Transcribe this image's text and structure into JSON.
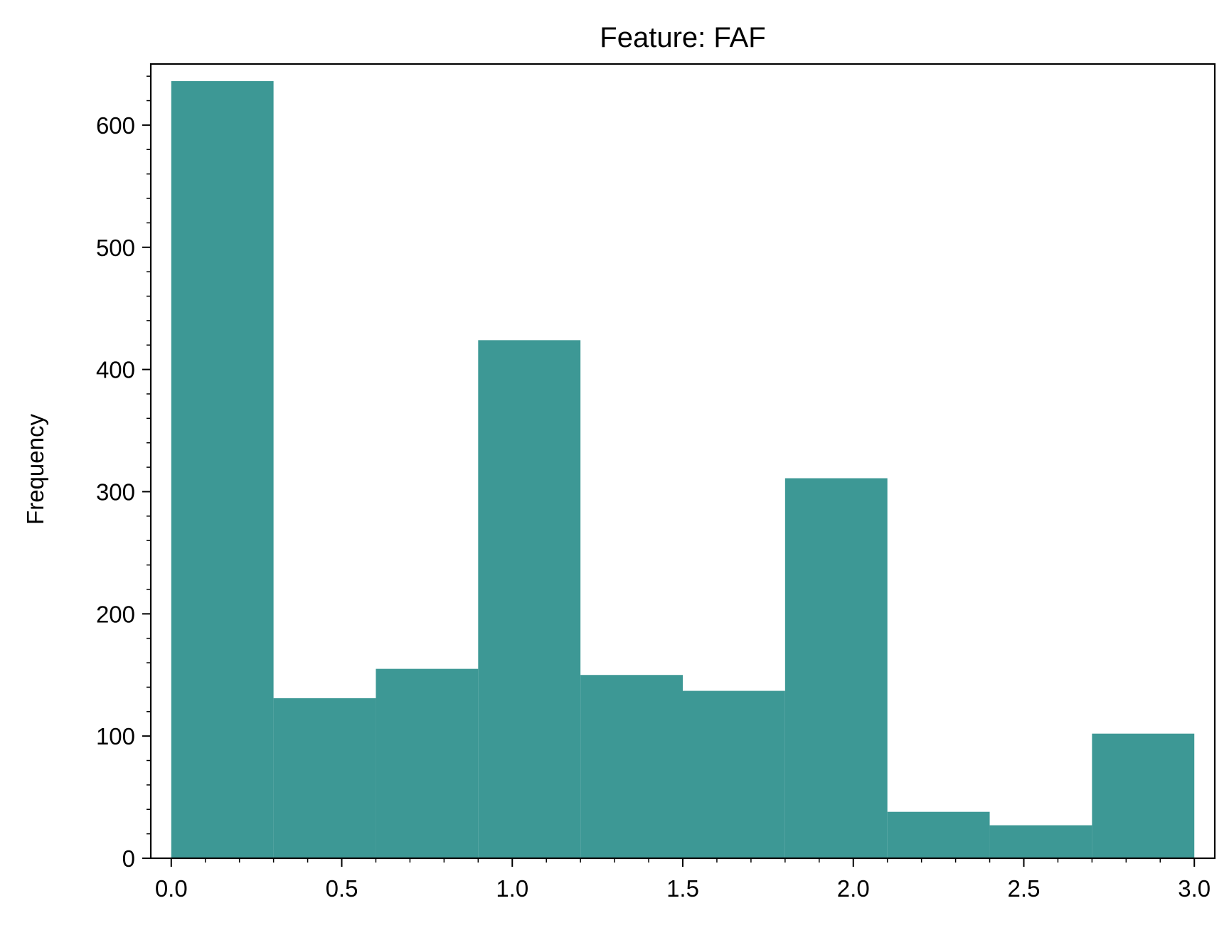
{
  "chart_data": {
    "type": "bar",
    "title": "Feature: FAF",
    "xlabel": "",
    "ylabel": "Frequency",
    "bar_color": "#3d9895",
    "bins": [
      {
        "x0": 0.0,
        "x1": 0.3,
        "count": 636
      },
      {
        "x0": 0.3,
        "x1": 0.6,
        "count": 131
      },
      {
        "x0": 0.6,
        "x1": 0.9,
        "count": 155
      },
      {
        "x0": 0.9,
        "x1": 1.2,
        "count": 424
      },
      {
        "x0": 1.2,
        "x1": 1.5,
        "count": 150
      },
      {
        "x0": 1.5,
        "x1": 1.8,
        "count": 137
      },
      {
        "x0": 1.8,
        "x1": 2.1,
        "count": 311
      },
      {
        "x0": 2.1,
        "x1": 2.4,
        "count": 38
      },
      {
        "x0": 2.4,
        "x1": 2.7,
        "count": 27
      },
      {
        "x0": 2.7,
        "x1": 3.0,
        "count": 102
      }
    ],
    "xlim": [
      -0.06,
      3.06
    ],
    "ylim": [
      0,
      650
    ],
    "x_ticks": [
      0.0,
      0.5,
      1.0,
      1.5,
      2.0,
      2.5,
      3.0
    ],
    "x_tick_labels": [
      "0.0",
      "0.5",
      "1.0",
      "1.5",
      "2.0",
      "2.5",
      "3.0"
    ],
    "x_minor_step": 0.1,
    "y_ticks": [
      0,
      100,
      200,
      300,
      400,
      500,
      600
    ],
    "y_tick_labels": [
      "0",
      "100",
      "200",
      "300",
      "400",
      "500",
      "600"
    ],
    "y_minor_step": 20,
    "grid": false,
    "legend": "none"
  }
}
